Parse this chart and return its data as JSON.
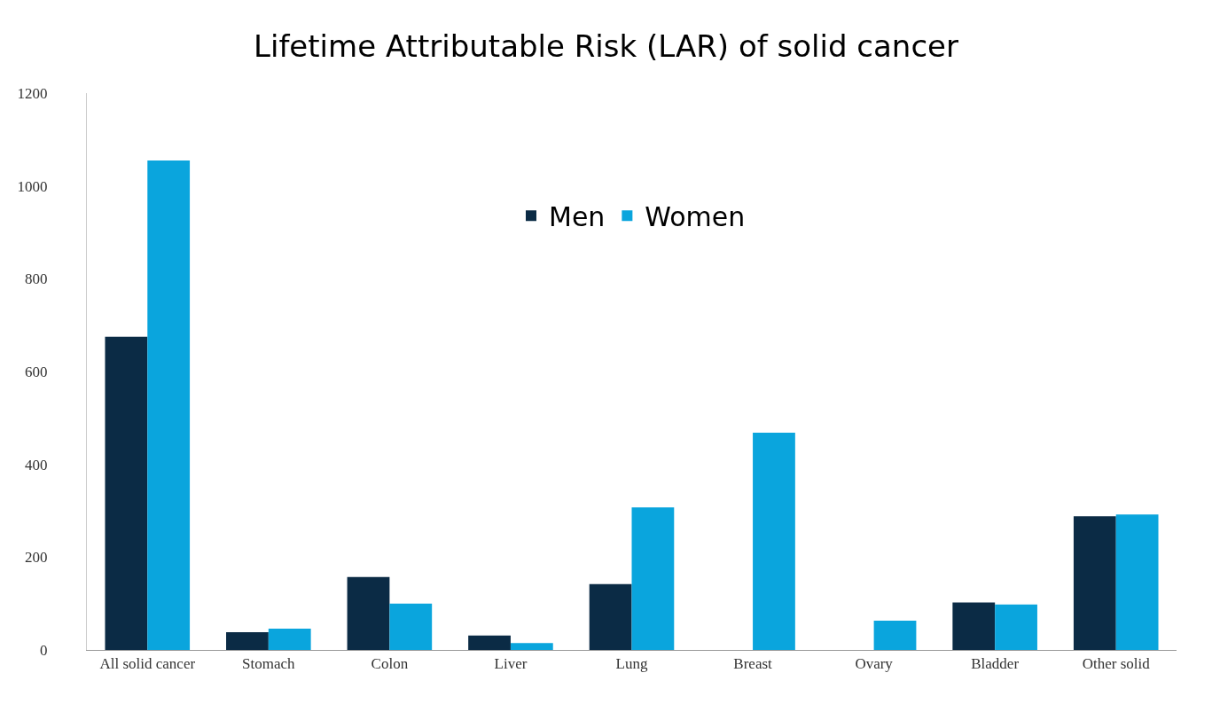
{
  "chart_data": {
    "type": "bar",
    "title": "Lifetime Attributable Risk (LAR) of solid cancer",
    "categories": [
      "All solid cancer",
      "Stomach",
      "Colon",
      "Liver",
      "Lung",
      "Breast",
      "Ovary",
      "Bladder",
      "Other solid"
    ],
    "series": [
      {
        "name": "Men",
        "color": "#0b2b45",
        "values": [
          675,
          38,
          157,
          31,
          142,
          null,
          null,
          102,
          288
        ]
      },
      {
        "name": "Women",
        "color": "#0aa5dd",
        "values": [
          1055,
          46,
          100,
          15,
          307,
          468,
          63,
          98,
          292
        ]
      }
    ],
    "ylim": [
      0,
      1200
    ],
    "yticks": [
      0,
      200,
      400,
      600,
      800,
      1000,
      1200
    ],
    "grid": false,
    "legend": "top"
  }
}
